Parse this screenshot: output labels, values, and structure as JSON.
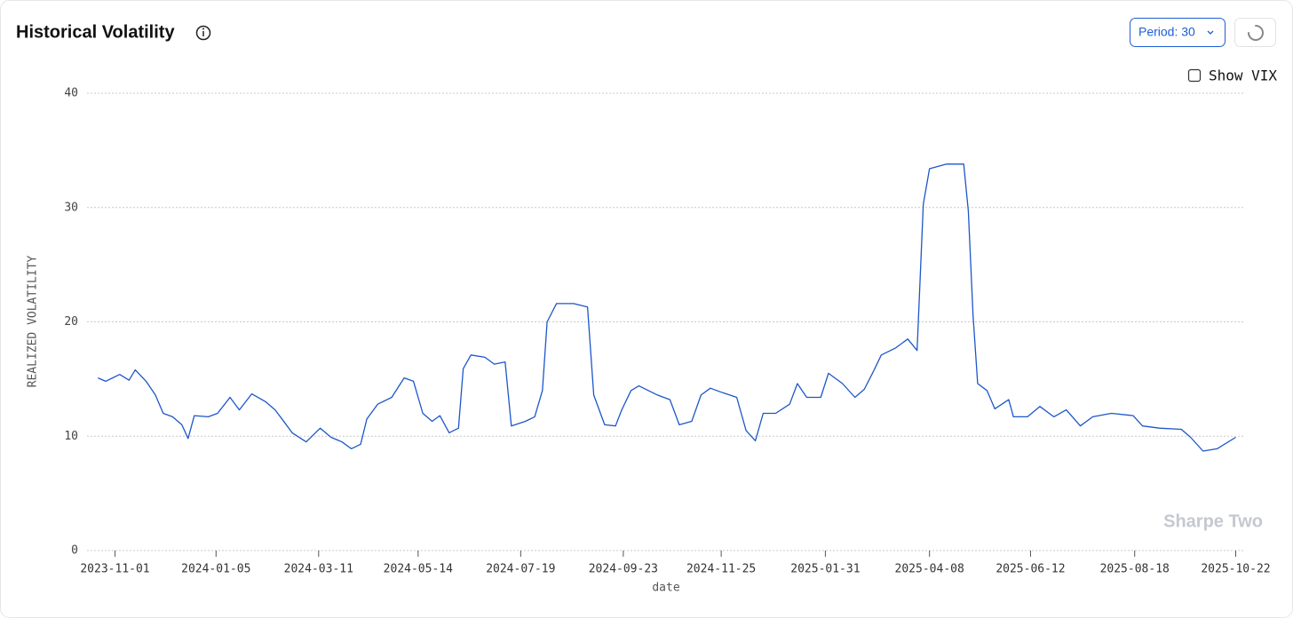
{
  "chart_data": {
    "type": "line",
    "title": "Historical Volatility",
    "x_label": "date",
    "y_label": "REALIZED VOLATILITY",
    "x": [
      "2023-10-21",
      "2023-10-26",
      "2023-11-04",
      "2023-11-10",
      "2023-11-14",
      "2023-11-21",
      "2023-11-27",
      "2023-12-02",
      "2023-12-08",
      "2023-12-14",
      "2023-12-18",
      "2023-12-22",
      "2023-12-31",
      "2024-01-06",
      "2024-01-14",
      "2024-01-20",
      "2024-01-28",
      "2024-02-06",
      "2024-02-12",
      "2024-02-17",
      "2024-02-23",
      "2024-03-03",
      "2024-03-12",
      "2024-03-19",
      "2024-03-26",
      "2024-04-01",
      "2024-04-07",
      "2024-04-11",
      "2024-04-18",
      "2024-04-27",
      "2024-05-05",
      "2024-05-11",
      "2024-05-17",
      "2024-05-23",
      "2024-05-28",
      "2024-06-03",
      "2024-06-09",
      "2024-06-12",
      "2024-06-17",
      "2024-06-26",
      "2024-07-02",
      "2024-07-09",
      "2024-07-13",
      "2024-07-22",
      "2024-07-28",
      "2024-08-02",
      "2024-08-05",
      "2024-08-11",
      "2024-08-22",
      "2024-08-31",
      "2024-09-04",
      "2024-09-11",
      "2024-09-18",
      "2024-09-22",
      "2024-09-28",
      "2024-10-03",
      "2024-10-15",
      "2024-10-23",
      "2024-10-29",
      "2024-11-06",
      "2024-11-12",
      "2024-11-18",
      "2024-11-26",
      "2024-12-05",
      "2024-12-11",
      "2024-12-17",
      "2024-12-22",
      "2024-12-30",
      "2025-01-08",
      "2025-01-13",
      "2025-01-19",
      "2025-01-28",
      "2025-02-02",
      "2025-02-11",
      "2025-02-19",
      "2025-02-25",
      "2025-03-03",
      "2025-03-08",
      "2025-03-17",
      "2025-03-25",
      "2025-03-31",
      "2025-04-04",
      "2025-04-08",
      "2025-04-19",
      "2025-04-30",
      "2025-05-03",
      "2025-05-06",
      "2025-05-09",
      "2025-05-15",
      "2025-05-20",
      "2025-05-29",
      "2025-06-01",
      "2025-06-10",
      "2025-06-18",
      "2025-06-27",
      "2025-07-05",
      "2025-07-14",
      "2025-07-22",
      "2025-08-03",
      "2025-08-17",
      "2025-08-23",
      "2025-09-03",
      "2025-09-17",
      "2025-09-23",
      "2025-10-01",
      "2025-10-10",
      "2025-10-22"
    ],
    "values": [
      15.1,
      14.8,
      15.4,
      14.9,
      15.8,
      14.8,
      13.6,
      12.0,
      11.7,
      11.0,
      9.8,
      11.8,
      11.7,
      12.0,
      13.4,
      12.3,
      13.7,
      13.0,
      12.3,
      11.4,
      10.3,
      9.5,
      10.7,
      9.9,
      9.5,
      8.9,
      9.3,
      11.5,
      12.8,
      13.4,
      15.1,
      14.8,
      12.0,
      11.3,
      11.8,
      10.3,
      10.7,
      15.9,
      17.1,
      16.9,
      16.3,
      16.5,
      10.9,
      11.3,
      11.7,
      14.0,
      20.0,
      21.6,
      21.6,
      21.3,
      13.6,
      11.0,
      10.9,
      12.3,
      14.0,
      14.4,
      13.6,
      13.2,
      11.0,
      11.3,
      13.6,
      14.2,
      13.8,
      13.4,
      10.5,
      9.6,
      12.0,
      12.0,
      12.8,
      14.6,
      13.4,
      13.4,
      15.5,
      14.6,
      13.4,
      14.1,
      15.7,
      17.1,
      17.7,
      18.5,
      17.5,
      30.3,
      33.4,
      33.8,
      33.8,
      29.7,
      20.6,
      14.6,
      14.0,
      12.4,
      13.2,
      11.7,
      11.7,
      12.6,
      11.7,
      12.3,
      10.9,
      11.7,
      12.0,
      11.8,
      10.9,
      10.7,
      10.6,
      9.9,
      8.7,
      8.9,
      9.9
    ],
    "color": "#1d56c9",
    "xlim": [
      "2023-10-14",
      "2025-10-28"
    ],
    "xticks": [
      "2023-11-01",
      "2024-01-05",
      "2024-03-11",
      "2024-05-14",
      "2024-07-19",
      "2024-09-23",
      "2024-11-25",
      "2025-01-31",
      "2025-04-08",
      "2025-06-12",
      "2025-08-18",
      "2025-10-22"
    ],
    "ylim": [
      0,
      40
    ],
    "yticks": [
      0,
      10,
      20,
      30,
      40
    ],
    "grid": true
  },
  "controls": {
    "period": "Period: 30",
    "show_vix": "Show VIX"
  },
  "watermark": "Sharpe Two"
}
